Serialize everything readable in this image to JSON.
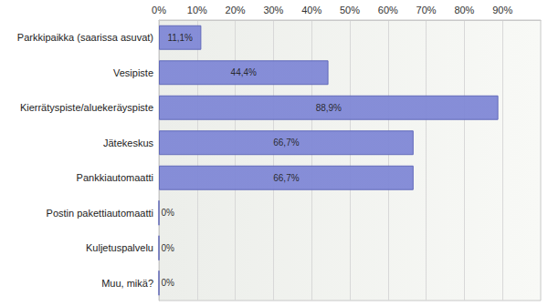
{
  "chart_data": {
    "type": "bar",
    "orientation": "horizontal",
    "categories": [
      "Parkkipaikka (saarissa asuvat)",
      "Vesipiste",
      "Kierrätyspiste/aluekeräyspiste",
      "Jätekeskus",
      "Pankkiautomaatti",
      "Postin pakettiautomaatti",
      "Kuljetuspalvelu",
      "Muu, mikä?"
    ],
    "values": [
      11.1,
      44.4,
      88.9,
      66.7,
      66.7,
      0,
      0,
      0
    ],
    "value_labels": [
      "11,1%",
      "44,4%",
      "88,9%",
      "66,7%",
      "66,7%",
      "0%",
      "0%",
      "0%"
    ],
    "color": "#8088d6",
    "xlim": [
      0,
      100
    ],
    "xticks": [
      {
        "value": 0,
        "label": "0%"
      },
      {
        "value": 10,
        "label": "10%"
      },
      {
        "value": 20,
        "label": "20%"
      },
      {
        "value": 30,
        "label": "30%"
      },
      {
        "value": 40,
        "label": "40%"
      },
      {
        "value": 50,
        "label": "50%"
      },
      {
        "value": 60,
        "label": "60%"
      },
      {
        "value": 70,
        "label": "70%"
      },
      {
        "value": 80,
        "label": "80%"
      },
      {
        "value": 90,
        "label": "90%"
      }
    ],
    "grid": true,
    "data_labels": true
  }
}
